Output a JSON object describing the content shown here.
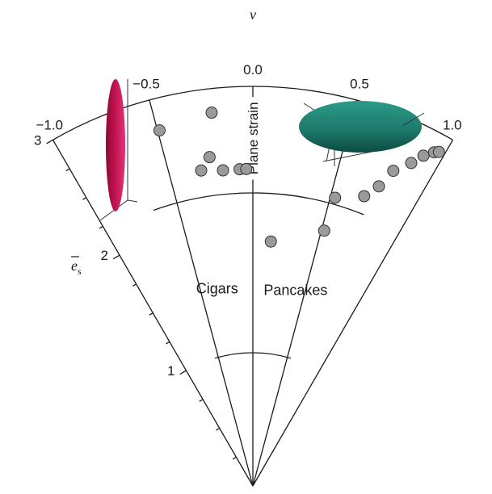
{
  "chart_data": {
    "type": "scatter",
    "projection": "polar (Flinn-style strain plot)",
    "angular_axis": {
      "label": "ν",
      "range": [
        -1.0,
        1.0
      ],
      "tick_labels": [
        {
          "value": -1.0,
          "text": "−1.0"
        },
        {
          "value": -0.5,
          "text": "−0.5"
        },
        {
          "value": 0.0,
          "text": "0.0"
        },
        {
          "value": 0.5,
          "text": "0.5"
        },
        {
          "value": 1.0,
          "text": "1.0"
        }
      ]
    },
    "radial_axis": {
      "label_main": "e",
      "label_sub": "s",
      "range": [
        0,
        3
      ],
      "tick_labels": [
        {
          "value": 1,
          "text": "1"
        },
        {
          "value": 2,
          "text": "2"
        },
        {
          "value": 3,
          "text": "3"
        }
      ],
      "minor_ticks": [
        0.25,
        0.5,
        0.75,
        1.25,
        1.5,
        1.75,
        2.25,
        2.5,
        2.75
      ]
    },
    "regions": [
      {
        "text": "Cigars",
        "nu": -0.35,
        "es": 1.47
      },
      {
        "text": "Pancakes",
        "nu": 0.42,
        "es": 1.47
      }
    ],
    "annotations": [
      {
        "text": "Plane strain",
        "nu": 0.0,
        "es_from": 2.3,
        "es_to": 2.92
      }
    ],
    "inner_arc_es": [
      1.0,
      2.2
    ],
    "guide_lines_nu": [
      -0.5,
      0.5
    ],
    "glyphs": [
      {
        "shape": "prolate ellipsoid",
        "color": "#c0114f"
      },
      {
        "shape": "oblate ellipsoid",
        "color": "#1d7a6c"
      }
    ],
    "points": [
      {
        "nu": -0.49,
        "es": 2.76
      },
      {
        "nu": -0.21,
        "es": 2.82
      },
      {
        "nu": -0.25,
        "es": 2.49
      },
      {
        "nu": -0.31,
        "es": 2.4
      },
      {
        "nu": -0.18,
        "es": 2.38
      },
      {
        "nu": -0.08,
        "es": 2.38
      },
      {
        "nu": -0.04,
        "es": 2.38
      },
      {
        "nu": 0.14,
        "es": 1.84
      },
      {
        "nu": 0.53,
        "es": 2.25
      },
      {
        "nu": 0.52,
        "es": 1.99
      },
      {
        "nu": 0.7,
        "es": 2.33
      },
      {
        "nu": 0.76,
        "es": 2.44
      },
      {
        "nu": 0.8,
        "es": 2.59
      },
      {
        "nu": 0.87,
        "es": 2.7
      },
      {
        "nu": 0.91,
        "es": 2.79
      },
      {
        "nu": 0.95,
        "es": 2.85
      },
      {
        "nu": 0.97,
        "es": 2.87
      }
    ],
    "marker_color": "#9a9a9a",
    "grid": false
  }
}
